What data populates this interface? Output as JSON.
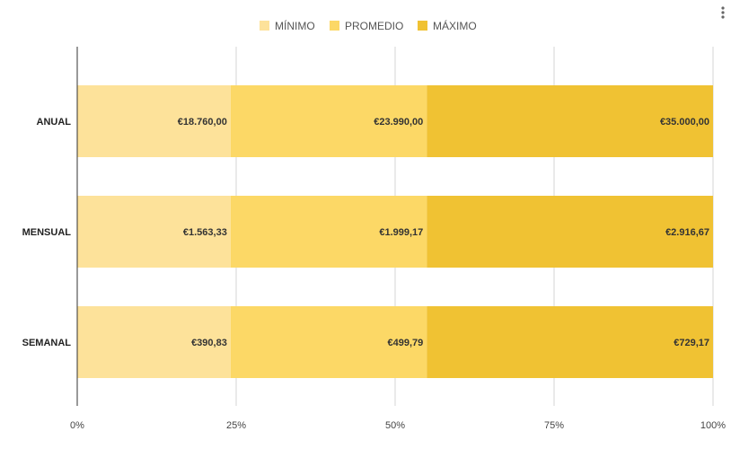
{
  "chart_data": {
    "type": "bar",
    "orientation": "horizontal",
    "stacked": "percent",
    "categories": [
      "ANUAL",
      "MENSUAL",
      "SEMANAL"
    ],
    "series": [
      {
        "name": "MÍNIMO",
        "values": [
          18760.0,
          1563.33,
          390.83
        ],
        "labels": [
          "€18.760,00",
          "€1.563,33",
          "€390,83"
        ]
      },
      {
        "name": "PROMEDIO",
        "values": [
          23990.0,
          1999.17,
          499.79
        ],
        "labels": [
          "€23.990,00",
          "€1.999,17",
          "€499,79"
        ]
      },
      {
        "name": "MÁXIMO",
        "values": [
          35000.0,
          2916.67,
          729.17
        ],
        "labels": [
          "€35.000,00",
          "€2.916,67",
          "€729,17"
        ]
      }
    ],
    "xticks": [
      "0%",
      "25%",
      "50%",
      "75%",
      "100%"
    ],
    "xlim": [
      0,
      100
    ],
    "grid": true,
    "legend": "top-center",
    "colors": [
      "#fde29a",
      "#fcd866",
      "#f0c233"
    ],
    "title": "",
    "xlabel": "",
    "ylabel": ""
  },
  "menu": {
    "icon": "more-vert-icon"
  }
}
